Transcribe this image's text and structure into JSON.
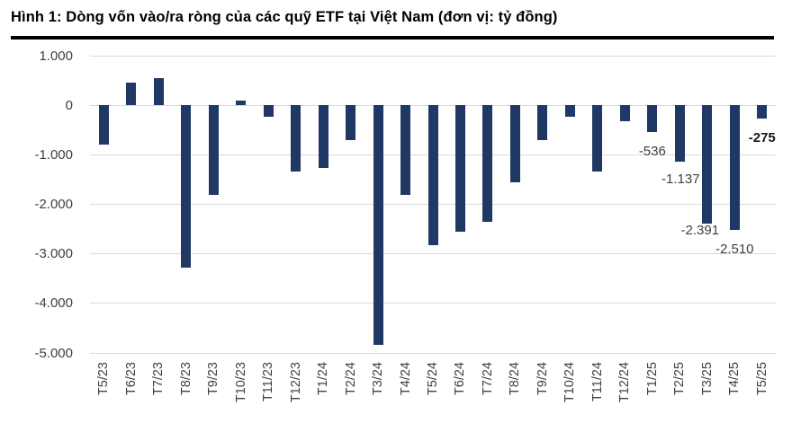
{
  "figure": {
    "title": "Hình 1: Dòng vốn vào/ra ròng của các quỹ ETF tại Việt Nam (đơn vị: tỷ đồng)"
  },
  "chart_data": {
    "type": "bar",
    "title": "Dòng vốn vào/ra ròng của các quỹ ETF tại Việt Nam",
    "unit": "tỷ đồng",
    "categories": [
      "T5/23",
      "T6/23",
      "T7/23",
      "T8/23",
      "T9/23",
      "T10/23",
      "T11/23",
      "T12/23",
      "T1/24",
      "T2/24",
      "T3/24",
      "T4/24",
      "T5/24",
      "T6/24",
      "T7/24",
      "T8/24",
      "T9/24",
      "T10/24",
      "T11/24",
      "T12/24",
      "T1/25",
      "T2/25",
      "T3/25",
      "T4/25",
      "T5/25"
    ],
    "values": [
      -800,
      460,
      540,
      -3280,
      -1810,
      100,
      -225,
      -1345,
      -1270,
      -710,
      -4845,
      -1815,
      -2830,
      -2555,
      -2350,
      -1560,
      -710,
      -225,
      -1330,
      -330,
      -536,
      -1137,
      -2391,
      -2510,
      -275
    ],
    "data_labels": [
      {
        "index": 20,
        "text": "-536",
        "bold": false
      },
      {
        "index": 21,
        "text": "-1.137",
        "bold": false
      },
      {
        "index": 22,
        "text": "-2.391",
        "bold": false
      },
      {
        "index": 23,
        "text": "-2.510",
        "bold": false
      },
      {
        "index": 24,
        "text": "-275",
        "bold": true
      }
    ],
    "y_axis": {
      "min": -5000,
      "max": 1000,
      "ticks": [
        {
          "value": 1000,
          "label": "1.000"
        },
        {
          "value": 0,
          "label": "0"
        },
        {
          "value": -1000,
          "label": "-1.000"
        },
        {
          "value": -2000,
          "label": "-2.000"
        },
        {
          "value": -3000,
          "label": "-3.000"
        },
        {
          "value": -4000,
          "label": "-4.000"
        },
        {
          "value": -5000,
          "label": "-5.000"
        }
      ]
    },
    "grid": true,
    "legend": "none",
    "colors": {
      "bar": "#1f3864",
      "gridline": "#d9d9d9",
      "axis_label": "#404040",
      "data_label": "#404040",
      "data_label_bold": "#171717",
      "title": "#000000",
      "title_rule": "#000000"
    }
  }
}
